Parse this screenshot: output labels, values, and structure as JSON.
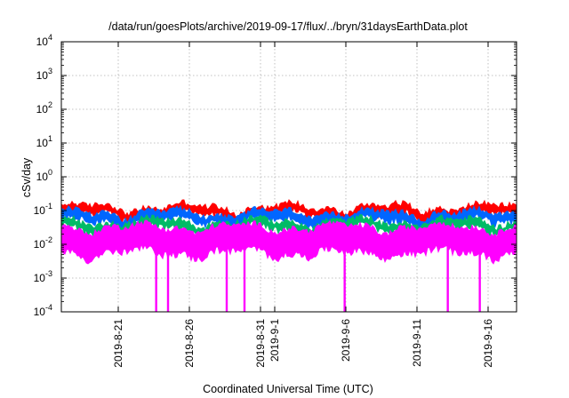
{
  "chart_data": {
    "type": "line",
    "title": "/data/run/goesPlots/archive/2019-09-17/flux/../bryn/31daysEarthData.plot",
    "xlabel": "Coordinated Universal Time (UTC)",
    "ylabel": "cSv/day",
    "yscale": "log",
    "ylim": [
      0.0001,
      10000
    ],
    "xlim": [
      "2019-08-17T00:00",
      "2019-09-18T00:00"
    ],
    "y_ticks": [
      {
        "value": 0.0001,
        "base": "10",
        "exp": "-4"
      },
      {
        "value": 0.001,
        "base": "10",
        "exp": "-3"
      },
      {
        "value": 0.01,
        "base": "10",
        "exp": "-2"
      },
      {
        "value": 0.1,
        "base": "10",
        "exp": "-1"
      },
      {
        "value": 1,
        "base": "10",
        "exp": "0"
      },
      {
        "value": 10,
        "base": "10",
        "exp": "1"
      },
      {
        "value": 100,
        "base": "10",
        "exp": "2"
      },
      {
        "value": 1000,
        "base": "10",
        "exp": "3"
      },
      {
        "value": 10000,
        "base": "10",
        "exp": "4"
      }
    ],
    "x_ticks": [
      {
        "date": "2019-08-21",
        "labels": [
          "2019-8-21"
        ]
      },
      {
        "date": "2019-08-26",
        "labels": [
          "2019-8-26"
        ]
      },
      {
        "date": "2019-08-31",
        "labels": [
          "2019-8-31"
        ]
      },
      {
        "date": "2019-09-01",
        "labels": [
          "2019-9-1"
        ]
      },
      {
        "date": "2019-09-06",
        "labels": [
          "2019-9-6"
        ]
      },
      {
        "date": "2019-09-11",
        "labels": [
          "2019-9-11"
        ]
      },
      {
        "date": "2019-09-16",
        "labels": [
          "2019-9-16"
        ]
      }
    ],
    "grid": true,
    "series": [
      {
        "color": "#ff0000",
        "base_min": 0.075,
        "base_max": 0.12
      },
      {
        "color": "#0066ff",
        "base_min": 0.05,
        "base_max": 0.08
      },
      {
        "color": "#00bb66",
        "base_min": 0.03,
        "base_max": 0.045
      },
      {
        "color": "#ff00ff",
        "base_min": 0.006,
        "base_max": 0.03
      }
    ],
    "dropouts": [
      "2019-08-23T16:00",
      "2019-08-24T12:00",
      "2019-08-28T15:00",
      "2019-08-29T21:00",
      "2019-09-05T22:00",
      "2019-09-13T04:00",
      "2019-09-15T10:00"
    ],
    "dropout_min": 0.0001
  }
}
